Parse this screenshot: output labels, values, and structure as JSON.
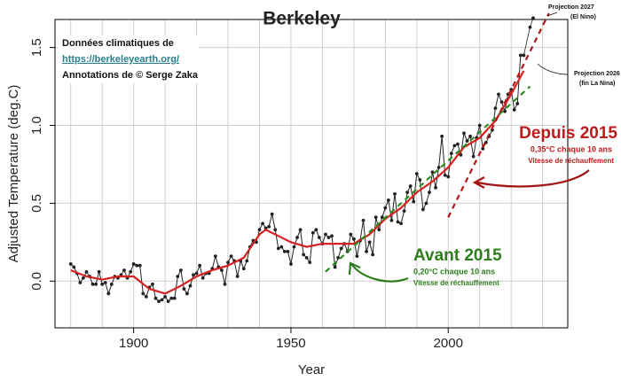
{
  "chart_data": {
    "type": "line",
    "title": "Berkeley",
    "x_label": "Year",
    "y_label": "Adjusted Temperature (deg.C)",
    "xlim": [
      1875,
      2038
    ],
    "ylim": [
      -0.3,
      1.68
    ],
    "xticks": [
      1900,
      1950,
      2000
    ],
    "yticks": [
      {
        "value": 0,
        "label": "0.0"
      },
      {
        "value": 0.5,
        "label": "0.5"
      },
      {
        "value": 1,
        "label": "1.0"
      },
      {
        "value": 1.5,
        "label": "1.5"
      }
    ],
    "xgrid": [
      1880,
      1890,
      1900,
      1910,
      1920,
      1930,
      1940,
      1950,
      1960,
      1970,
      1980,
      1990,
      2000,
      2010,
      2020,
      2030
    ],
    "grid": true,
    "series": [
      {
        "color": "#222222",
        "markers": true,
        "dashed": false,
        "width": 1,
        "x": [
          1880,
          1881,
          1882,
          1883,
          1884,
          1885,
          1886,
          1887,
          1888,
          1889,
          1890,
          1891,
          1892,
          1893,
          1894,
          1895,
          1896,
          1897,
          1898,
          1899,
          1900,
          1901,
          1902,
          1903,
          1904,
          1905,
          1906,
          1907,
          1908,
          1909,
          1910,
          1911,
          1912,
          1913,
          1914,
          1915,
          1916,
          1917,
          1918,
          1919,
          1920,
          1921,
          1922,
          1923,
          1924,
          1925,
          1926,
          1927,
          1928,
          1929,
          1930,
          1931,
          1932,
          1933,
          1934,
          1935,
          1936,
          1937,
          1938,
          1939,
          1940,
          1941,
          1942,
          1943,
          1944,
          1945,
          1946,
          1947,
          1948,
          1949,
          1950,
          1951,
          1952,
          1953,
          1954,
          1955,
          1956,
          1957,
          1958,
          1959,
          1960,
          1961,
          1962,
          1963,
          1964,
          1965,
          1966,
          1967,
          1968,
          1969,
          1970,
          1971,
          1972,
          1973,
          1974,
          1975,
          1976,
          1977,
          1978,
          1979,
          1980,
          1981,
          1982,
          1983,
          1984,
          1985,
          1986,
          1987,
          1988,
          1989,
          1990,
          1991,
          1992,
          1993,
          1994,
          1995,
          1996,
          1997,
          1998,
          1999,
          2000,
          2001,
          2002,
          2003,
          2004,
          2005,
          2006,
          2007,
          2008,
          2009,
          2010,
          2011,
          2012,
          2013,
          2014,
          2015,
          2016,
          2017,
          2018,
          2019,
          2020,
          2021,
          2022,
          2023,
          2024
        ],
        "values": [
          0.11,
          0.09,
          0.05,
          -0.01,
          0.02,
          0.06,
          0.03,
          -0.02,
          -0.02,
          0.06,
          -0.02,
          -0.01,
          -0.08,
          -0.02,
          0.03,
          0.02,
          0.04,
          0.07,
          0.02,
          0.06,
          0.11,
          0.1,
          0.1,
          -0.08,
          -0.1,
          -0.04,
          -0.02,
          -0.11,
          -0.13,
          -0.12,
          -0.1,
          -0.13,
          -0.11,
          -0.11,
          0.03,
          0.07,
          -0.05,
          -0.08,
          -0.03,
          0.04,
          0.05,
          0.1,
          0.02,
          0.05,
          0.05,
          0.08,
          0.16,
          0.09,
          0.07,
          -0.02,
          0.12,
          0.16,
          0.13,
          0.03,
          0.13,
          0.08,
          0.13,
          0.22,
          0.26,
          0.25,
          0.33,
          0.37,
          0.34,
          0.35,
          0.43,
          0.33,
          0.21,
          0.22,
          0.19,
          0.19,
          0.11,
          0.22,
          0.28,
          0.33,
          0.17,
          0.15,
          0.12,
          0.31,
          0.33,
          0.28,
          0.24,
          0.3,
          0.28,
          0.29,
          0.09,
          0.15,
          0.21,
          0.24,
          0.19,
          0.3,
          0.27,
          0.16,
          0.26,
          0.39,
          0.19,
          0.25,
          0.17,
          0.41,
          0.33,
          0.41,
          0.47,
          0.52,
          0.39,
          0.56,
          0.38,
          0.37,
          0.45,
          0.57,
          0.61,
          0.51,
          0.69,
          0.65,
          0.46,
          0.5,
          0.57,
          0.7,
          0.6,
          0.73,
          0.93,
          0.68,
          0.67,
          0.82,
          0.87,
          0.88,
          0.81,
          0.95,
          0.9,
          0.93,
          0.8,
          0.92,
          1.0,
          0.85,
          0.89,
          0.93,
          0.97,
          1.11,
          1.2,
          1.15,
          1.09,
          1.2,
          1.23,
          1.1,
          1.14,
          1.45,
          1.45
        ]
      },
      {
        "color": "#222222",
        "markers": true,
        "dashed": false,
        "width": 0.8,
        "x": [
          2024,
          2026,
          2027
        ],
        "values": [
          1.45,
          1.63,
          1.69
        ]
      },
      {
        "color": "#d62020",
        "markers": false,
        "dashed": false,
        "width": 2.2,
        "x": [
          1880,
          1885,
          1890,
          1895,
          1900,
          1905,
          1910,
          1915,
          1920,
          1925,
          1930,
          1935,
          1940,
          1942,
          1945,
          1950,
          1955,
          1960,
          1965,
          1970,
          1975,
          1980,
          1985,
          1990,
          1995,
          2000,
          2005,
          2010,
          2015,
          2020,
          2024
        ],
        "values": [
          0.07,
          0.03,
          0.01,
          0.03,
          0.03,
          -0.05,
          -0.08,
          -0.03,
          0.03,
          0.07,
          0.1,
          0.15,
          0.3,
          0.33,
          0.3,
          0.25,
          0.22,
          0.24,
          0.24,
          0.24,
          0.3,
          0.4,
          0.47,
          0.57,
          0.64,
          0.73,
          0.86,
          0.92,
          1.03,
          1.2,
          1.35
        ]
      },
      {
        "color": "#2e8b22",
        "markers": false,
        "dashed": true,
        "width": 2.2,
        "x": [
          1961,
          2026
        ],
        "values": [
          0.06,
          1.25
        ]
      },
      {
        "color": "#b01818",
        "markers": false,
        "dashed": true,
        "width": 2.2,
        "x": [
          2000,
          2032
        ],
        "values": [
          0.41,
          1.72
        ]
      }
    ],
    "annotations": {
      "source_1": "Données climatiques de",
      "source_link": "https://berkeleyearth.org/",
      "source_2": "Annotations de © Serge Zaka",
      "after_title": "Depuis 2015",
      "after_rate": "0,35°C chaque 10 ans",
      "after_caption": "Vitesse de réchauffement",
      "before_title": "Avant 2015",
      "before_rate": "0,20°C chaque 10 ans",
      "before_caption": "Vitesse de réchauffement",
      "proj_2027": "Projection 2027",
      "proj_2027_note": "(El Nino)",
      "proj_2026": "Projection 2026",
      "proj_2026_note": "(fin La Nina)"
    }
  }
}
